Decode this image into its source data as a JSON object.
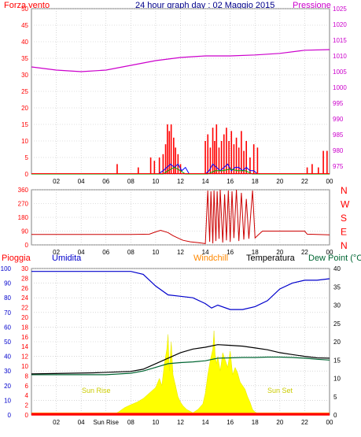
{
  "title": "24 hour graph day : 02 Maggio 2015",
  "colors": {
    "wind_axis": "#ff0000",
    "pressure": "#cc00cc",
    "gust": "#ff0000",
    "wind_speed": "#0000ff",
    "wind_avg": "#00aa00",
    "direction": "#cc0000",
    "humidity": "#0000cc",
    "rain": "#ff0000",
    "windchill": "#ff8800",
    "temperature": "#000000",
    "dew_point": "#006633",
    "solar": "#ffff00",
    "grid": "#c0c0c0"
  },
  "chart_data": [
    {
      "type": "line",
      "name": "wind-pressure",
      "title": "24 hour graph day : 02 Maggio 2015",
      "ylabel": "Forza vento",
      "y2label": "Pressione",
      "x_ticks": [
        "02",
        "04",
        "06",
        "08",
        "10",
        "12",
        "14",
        "16",
        "18",
        "20",
        "22",
        "00"
      ],
      "xlim": [
        0,
        24
      ],
      "ylim": [
        0,
        50
      ],
      "y_ticks": [
        0,
        5,
        10,
        15,
        20,
        25,
        30,
        35,
        40,
        45,
        50
      ],
      "y2lim": [
        972.5,
        1025
      ],
      "y2_ticks": [
        975,
        980,
        985,
        990,
        995,
        1000,
        1005,
        1010,
        1015,
        1020,
        1025
      ],
      "grid": true,
      "series": [
        {
          "key": "pressure",
          "axis": "right",
          "kind": "line",
          "x": [
            0,
            2,
            4,
            6,
            8,
            10,
            12,
            14,
            16,
            18,
            20,
            22,
            24
          ],
          "y": [
            1006.5,
            1005.5,
            1005,
            1005.5,
            1007,
            1008.5,
            1009.5,
            1010,
            1010,
            1010.3,
            1010.8,
            1011.8,
            1012
          ]
        },
        {
          "key": "gust",
          "kind": "spikes",
          "x": [
            6.9,
            8.6,
            9.6,
            9.9,
            10.3,
            10.6,
            10.8,
            10.95,
            11.1,
            11.25,
            11.45,
            11.6,
            11.8,
            12.0,
            14.0,
            14.2,
            14.4,
            14.6,
            14.75,
            14.9,
            15.1,
            15.3,
            15.5,
            15.7,
            15.9,
            16.1,
            16.3,
            16.5,
            16.7,
            16.9,
            17.1,
            17.3,
            17.6,
            17.9,
            18.2,
            22.2,
            22.6,
            23.1,
            23.5,
            23.8
          ],
          "y": [
            3,
            2,
            5,
            4,
            5,
            6,
            9,
            15,
            13,
            15,
            11,
            8,
            6,
            3,
            10,
            12,
            8,
            14,
            10,
            15,
            8,
            10,
            12,
            14,
            10,
            13,
            9,
            11,
            8,
            13,
            7,
            10,
            5,
            9,
            8,
            2,
            3,
            2,
            7,
            7
          ]
        },
        {
          "key": "wind_speed",
          "kind": "line",
          "x": [
            0,
            10.2,
            10.6,
            10.9,
            11.2,
            11.5,
            11.8,
            12.1,
            12.4,
            12.7,
            13.0,
            14.0,
            14.3,
            14.6,
            14.9,
            15.2,
            15.5,
            15.8,
            16.1,
            16.4,
            16.7,
            17.0,
            17.3,
            17.6,
            17.9,
            18.2,
            24
          ],
          "y": [
            0,
            0,
            1,
            2,
            3,
            2,
            3,
            1,
            2,
            0,
            0,
            0,
            1,
            3,
            2,
            1,
            2,
            3,
            1,
            2,
            2,
            1,
            2,
            1,
            1,
            0,
            0
          ]
        },
        {
          "key": "wind_avg",
          "kind": "line",
          "x": [
            0,
            10.6,
            11.0,
            11.5,
            12.0,
            12.4,
            14.2,
            14.8,
            15.4,
            16.0,
            16.6,
            17.2,
            17.8,
            24
          ],
          "y": [
            0,
            0,
            1,
            2,
            1,
            0,
            0,
            1,
            1,
            1.5,
            1,
            1,
            0,
            0
          ]
        }
      ]
    },
    {
      "type": "line",
      "name": "wind-direction",
      "x_ticks": [
        "02",
        "04",
        "06",
        "08",
        "10",
        "12",
        "14",
        "16",
        "18",
        "20",
        "22",
        "00"
      ],
      "xlim": [
        0,
        24
      ],
      "ylim": [
        0,
        360
      ],
      "y_ticks": [
        0,
        90,
        180,
        270,
        360
      ],
      "y_tick_labels": [
        "0",
        "90",
        "180",
        "270",
        "360"
      ],
      "compass_labels": [
        "N",
        "W",
        "S",
        "E",
        "N"
      ],
      "grid": true,
      "series": [
        {
          "key": "direction",
          "kind": "line",
          "x": [
            0,
            8.0,
            9.5,
            10.0,
            10.4,
            11.0,
            11.4,
            11.8,
            12.2,
            12.8,
            13.4,
            14.0,
            14.2,
            14.35,
            14.45,
            14.6,
            14.7,
            14.85,
            14.95,
            15.1,
            15.2,
            15.4,
            15.55,
            15.7,
            15.85,
            16.0,
            16.15,
            16.3,
            16.5,
            16.7,
            16.9,
            17.1,
            17.3,
            17.5,
            17.8,
            18.0,
            18.2,
            18.6,
            22.0,
            22.2,
            24
          ],
          "y": [
            68,
            68,
            70,
            85,
            95,
            80,
            60,
            45,
            30,
            20,
            15,
            8,
            355,
            20,
            350,
            10,
            355,
            25,
            350,
            40,
            360,
            15,
            330,
            30,
            355,
            20,
            350,
            45,
            360,
            25,
            340,
            35,
            300,
            40,
            355,
            45,
            60,
            90,
            90,
            70,
            66
          ]
        }
      ]
    },
    {
      "type": "line",
      "name": "humidity-temperature",
      "legend": [
        "Pioggia",
        "Umidita",
        "Windchill",
        "Temperatura",
        "Dew Point (°C"
      ],
      "x_ticks": [
        "02",
        "04",
        "Sun Rise",
        "08",
        "10",
        "12",
        "14",
        "16",
        "18",
        "20",
        "22",
        "00"
      ],
      "xlim": [
        0,
        24
      ],
      "ylim": [
        0,
        100
      ],
      "y_ticks": [
        0,
        10,
        20,
        30,
        40,
        50,
        60,
        70,
        80,
        90,
        100
      ],
      "rain_ticks": [
        0,
        2,
        4,
        6,
        8,
        10,
        12,
        14,
        16,
        18,
        20,
        22,
        24,
        26,
        28,
        30
      ],
      "y2lim": [
        0,
        40
      ],
      "y2_ticks": [
        0,
        5,
        10,
        15,
        20,
        25,
        30,
        35,
        40
      ],
      "annotations": [
        "Sun Rise",
        "Sun Set"
      ],
      "grid": true,
      "series": [
        {
          "key": "humidity",
          "axis": "left",
          "kind": "line",
          "x": [
            0,
            8.0,
            9.0,
            10.0,
            11.0,
            12.0,
            13.0,
            14.0,
            14.5,
            15.0,
            16.0,
            17.0,
            18.0,
            19.0,
            20.0,
            21.0,
            22.0,
            23.0,
            24
          ],
          "y": [
            98,
            98,
            96,
            88,
            82,
            81,
            80,
            76,
            73,
            75,
            72,
            72,
            74,
            78,
            86,
            90,
            92,
            92,
            93
          ]
        },
        {
          "key": "temperature",
          "axis": "right",
          "kind": "line",
          "x": [
            0,
            5.0,
            8.0,
            9.0,
            10.0,
            11.0,
            12.0,
            13.0,
            14.0,
            15.0,
            16.0,
            17.0,
            18.0,
            19.0,
            20.0,
            21.0,
            22.0,
            23.0,
            24
          ],
          "y": [
            11.2,
            11.5,
            11.9,
            12.5,
            14.0,
            15.5,
            17.0,
            18.0,
            18.5,
            19.2,
            19.0,
            18.8,
            18.3,
            17.8,
            17.0,
            16.5,
            16.0,
            15.6,
            15.5
          ]
        },
        {
          "key": "dew_point",
          "axis": "right",
          "kind": "line",
          "x": [
            0,
            6.0,
            8.0,
            9.0,
            10.0,
            11.0,
            12.0,
            13.0,
            14.0,
            15.0,
            16.0,
            17.0,
            18.0,
            19.0,
            20.0,
            21.0,
            22.0,
            23.0,
            24
          ],
          "y": [
            11.0,
            11.0,
            11.4,
            12.0,
            13.0,
            14.0,
            14.3,
            14.5,
            14.8,
            15.5,
            15.6,
            15.7,
            15.7,
            15.8,
            15.8,
            15.7,
            15.5,
            15.2,
            15.0
          ]
        },
        {
          "key": "windchill",
          "axis": "right",
          "kind": "line",
          "x": [
            0,
            24
          ],
          "y": [
            0.5,
            0.5
          ]
        },
        {
          "key": "rain",
          "axis": "right",
          "kind": "line",
          "x": [
            0,
            24
          ],
          "y": [
            0.15,
            0.15
          ]
        },
        {
          "key": "solar",
          "axis": "right",
          "kind": "area",
          "x": [
            6.6,
            7.0,
            7.5,
            8.0,
            8.5,
            9.0,
            9.5,
            10.0,
            10.3,
            10.5,
            10.7,
            10.9,
            11.0,
            11.1,
            11.25,
            11.4,
            11.6,
            11.8,
            12.0,
            12.2,
            12.5,
            13.0,
            13.4,
            13.8,
            14.0,
            14.2,
            14.4,
            14.6,
            14.7,
            14.8,
            14.9,
            15.0,
            15.2,
            15.4,
            15.6,
            15.8,
            16.0,
            16.2,
            16.4,
            16.6,
            16.8,
            17.0,
            17.2,
            17.4,
            17.6,
            17.8,
            18.0,
            18.4
          ],
          "y": [
            0.2,
            0.8,
            2.0,
            2.8,
            3.5,
            4.5,
            6.0,
            7.5,
            10.0,
            8.0,
            14.0,
            18.0,
            22.0,
            12.0,
            20.0,
            11.0,
            8.0,
            5.0,
            3.5,
            2.5,
            1.5,
            0.6,
            1.5,
            3.0,
            6.0,
            11.0,
            15.0,
            18.0,
            23.0,
            16.0,
            14.0,
            16.0,
            12.0,
            17.0,
            15.0,
            13.0,
            17.5,
            11.0,
            13.0,
            11.5,
            9.0,
            8.0,
            7.0,
            5.0,
            3.5,
            1.5,
            0.8,
            0.2
          ]
        }
      ]
    }
  ]
}
